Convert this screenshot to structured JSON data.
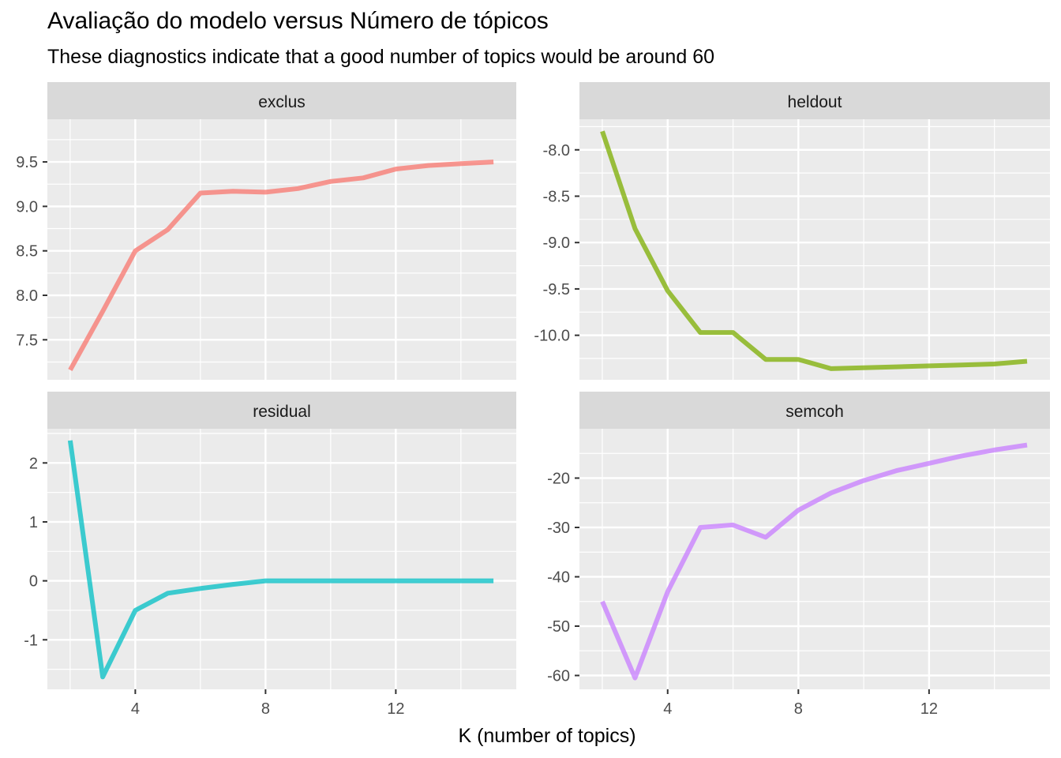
{
  "title": "Avaliação do modelo versus Número de tópicos",
  "subtitle": "These diagnostics indicate that a good number of topics would be around 60",
  "chart_data": {
    "type": "line",
    "layout": "facet-grid-2x2",
    "xlabel": "K (number of topics)",
    "x_ticks": [
      4,
      8,
      12
    ],
    "xlim": [
      1.3,
      15.7
    ],
    "grid": true,
    "legend": "none",
    "panels": [
      {
        "name": "exclus",
        "color": "#F8766D",
        "ylim": [
          7.05,
          9.98
        ],
        "y_ticks": [
          7.5,
          8.0,
          8.5,
          9.0,
          9.5
        ],
        "y_tick_labels": [
          "7.5",
          "8.0",
          "8.5",
          "9.0",
          "9.5"
        ],
        "x": [
          2,
          3,
          4,
          5,
          6,
          7,
          8,
          9,
          10,
          11,
          12,
          13,
          14,
          15
        ],
        "y": [
          7.16,
          7.82,
          8.5,
          8.74,
          9.15,
          9.17,
          9.16,
          9.2,
          9.28,
          9.32,
          9.42,
          9.46,
          9.48,
          9.5
        ]
      },
      {
        "name": "heldout",
        "color": "#7CAE00",
        "ylim": [
          -10.48,
          -7.67
        ],
        "y_ticks": [
          -10.0,
          -9.5,
          -9.0,
          -8.5,
          -8.0
        ],
        "y_tick_labels": [
          "-10.0",
          "-9.5",
          "-9.0",
          "-8.5",
          "-8.0"
        ],
        "x": [
          2,
          3,
          4,
          5,
          6,
          7,
          8,
          9,
          10,
          11,
          12,
          13,
          14,
          15
        ],
        "y": [
          -7.8,
          -8.85,
          -9.52,
          -9.97,
          -9.97,
          -10.26,
          -10.26,
          -10.36,
          -10.35,
          -10.34,
          -10.33,
          -10.32,
          -10.31,
          -10.28
        ]
      },
      {
        "name": "residual",
        "color": "#00BFC4",
        "ylim": [
          -1.84,
          2.58
        ],
        "y_ticks": [
          -1,
          0,
          1,
          2
        ],
        "y_tick_labels": [
          "-1",
          "0",
          "1",
          "2"
        ],
        "x": [
          2,
          3,
          4,
          5,
          6,
          7,
          8,
          9,
          10,
          11,
          12,
          13,
          14,
          15
        ],
        "y": [
          2.38,
          -1.63,
          -0.5,
          -0.21,
          -0.13,
          -0.06,
          0.0,
          0.0,
          0.0,
          0.0,
          0.0,
          0.0,
          0.0,
          0.0
        ]
      },
      {
        "name": "semcoh",
        "color": "#C77CFF",
        "ylim": [
          -62.8,
          -10.0
        ],
        "y_ticks": [
          -60,
          -50,
          -40,
          -30,
          -20
        ],
        "y_tick_labels": [
          "-60",
          "-50",
          "-40",
          "-30",
          "-20"
        ],
        "x": [
          2,
          3,
          4,
          5,
          6,
          7,
          8,
          9,
          10,
          11,
          12,
          13,
          14,
          15
        ],
        "y": [
          -45,
          -60.5,
          -43,
          -30,
          -29.5,
          -32,
          -26.5,
          -23,
          -20.5,
          -18.5,
          -17,
          -15.5,
          -14.3,
          -13.3
        ]
      }
    ]
  }
}
